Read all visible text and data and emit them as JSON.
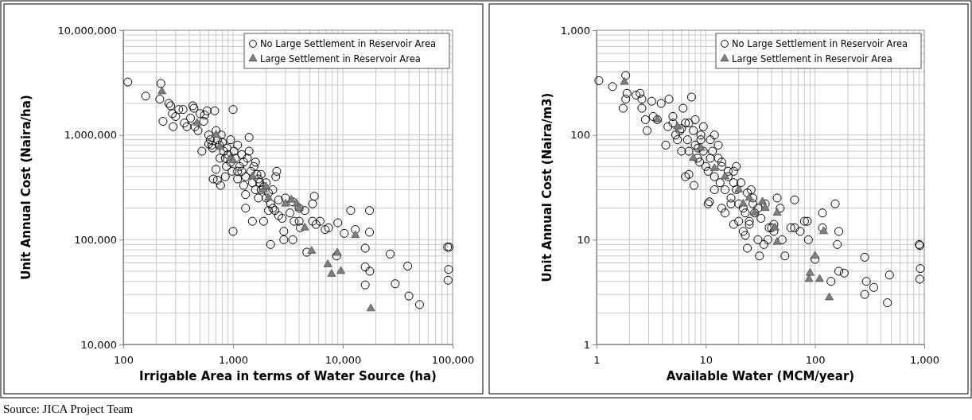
{
  "chart_data": [
    {
      "type": "scatter",
      "xlabel": "Irrigable Area in terms of Water Source (ha)",
      "ylabel": "Unit Annual Cost (Naira/ha)",
      "log": "xy",
      "grid": true,
      "legend": "top right",
      "xlim": [
        100,
        100000
      ],
      "xticks": [
        {
          "value": 100,
          "label": "100"
        },
        {
          "value": 1000,
          "label": "1,000"
        },
        {
          "value": 10000,
          "label": "10,000"
        },
        {
          "value": 100000,
          "label": "100,000"
        }
      ],
      "ylim": [
        10000,
        10000000
      ],
      "yticks": [
        {
          "value": 10000,
          "label": "10,000"
        },
        {
          "value": 100000,
          "label": "100,000"
        },
        {
          "value": 1000000,
          "label": "1,000,000"
        },
        {
          "value": 10000000,
          "label": "10,000,000"
        }
      ],
      "annotations": [
        "Source: JICA Project Team"
      ],
      "series": [
        {
          "name": "No Large Settlement in Reservoir Area",
          "color": "#000000",
          "marker": "circle",
          "x": [
            110,
            160,
            220,
            215,
            230,
            260,
            270,
            280,
            285,
            300,
            320,
            350,
            360,
            380,
            430,
            440,
            410,
            450,
            480,
            500,
            520,
            540,
            550,
            580,
            600,
            620,
            640,
            650,
            680,
            700,
            720,
            750,
            760,
            780,
            800,
            820,
            850,
            870,
            900,
            950,
            980,
            1000,
            1020,
            1050,
            1100,
            1150,
            1200,
            1250,
            1300,
            1350,
            1400,
            1450,
            1500,
            1550,
            1600,
            1650,
            1700,
            1750,
            1800,
            1900,
            2000,
            2100,
            2200,
            2300,
            2400,
            2500,
            2450,
            2600,
            2800,
            2900,
            660,
            700,
            720,
            770,
            850,
            1000,
            1300,
            1300,
            1500,
            1900,
            2100,
            2200,
            3000,
            2900,
            3300,
            3500,
            3600,
            3500,
            4000,
            4000,
            4100,
            4500,
            4700,
            5300,
            5500,
            5300,
            5700,
            6200,
            6900,
            7400,
            8800,
            9000,
            10300,
            11800,
            13000,
            16000,
            17500,
            17500,
            16000,
            17600,
            16000,
            27000,
            30000,
            39000,
            40000,
            50000,
            90000,
            93000,
            92000,
            91000,
            1100,
            1200,
            1400,
            1600,
            1250,
            1800,
            2000,
            1700,
            2300,
            2600,
            950,
            880,
            600,
            1100
          ],
          "values": [
            3200000,
            2350000,
            3100000,
            2200000,
            1350000,
            2000000,
            1900000,
            1600000,
            1200000,
            1500000,
            1750000,
            1750000,
            1300000,
            1200000,
            1900000,
            1800000,
            1450000,
            1200000,
            1100000,
            1600000,
            700000,
            1350000,
            1550000,
            1700000,
            1000000,
            900000,
            800000,
            750000,
            1700000,
            1100000,
            900000,
            800000,
            600000,
            1000000,
            850000,
            700000,
            600000,
            500000,
            650000,
            550000,
            450000,
            1750000,
            700000,
            600000,
            800000,
            500000,
            450000,
            550000,
            400000,
            600000,
            950000,
            450000,
            350000,
            500000,
            300000,
            420000,
            380000,
            350000,
            300000,
            320000,
            250000,
            280000,
            220000,
            200000,
            190000,
            450000,
            400000,
            170000,
            160000,
            120000,
            380000,
            470000,
            370000,
            330000,
            400000,
            120000,
            270000,
            200000,
            150000,
            150000,
            190000,
            90000,
            250000,
            100000,
            180000,
            230000,
            150000,
            100000,
            200000,
            150000,
            130000,
            190000,
            76000,
            220000,
            260000,
            150000,
            140000,
            150000,
            125000,
            130000,
            70000,
            145000,
            115000,
            190000,
            125000,
            83000,
            190000,
            118000,
            55000,
            50000,
            37000,
            73000,
            38000,
            56000,
            29000,
            24000,
            85000,
            85000,
            52000,
            41000,
            380000,
            650000,
            700000,
            550000,
            330000,
            420000,
            350000,
            250000,
            300000,
            240000,
            900000,
            750000,
            820000,
            450000
          ]
        },
        {
          "name": "Large Settlement in Reservoir Area",
          "color": "#7f7f7f",
          "marker": "triangle",
          "x": [
            225,
            470,
            700,
            760,
            950,
            1000,
            1500,
            1900,
            2000,
            2100,
            3000,
            3400,
            3800,
            4000,
            4500,
            5200,
            7300,
            7900,
            8900,
            9600,
            13000,
            18000
          ],
          "values": [
            2600000,
            1300000,
            1000000,
            770000,
            600000,
            570000,
            400000,
            300000,
            320000,
            250000,
            220000,
            240000,
            220000,
            200000,
            130000,
            78000,
            58000,
            47000,
            75000,
            50000,
            110000,
            22000
          ]
        }
      ]
    },
    {
      "type": "scatter",
      "xlabel": "Available Water (MCM/year)",
      "ylabel": "Unit Annual Cost (Naira/m3)",
      "log": "xy",
      "grid": true,
      "legend": "top right",
      "xlim": [
        1,
        1000
      ],
      "xticks": [
        {
          "value": 1,
          "label": "1"
        },
        {
          "value": 10,
          "label": "10"
        },
        {
          "value": 100,
          "label": "100"
        },
        {
          "value": 1000,
          "label": "1,000"
        }
      ],
      "ylim": [
        1,
        1000
      ],
      "yticks": [
        {
          "value": 1,
          "label": "1"
        },
        {
          "value": 10,
          "label": "10"
        },
        {
          "value": 100,
          "label": "100"
        },
        {
          "value": 1000,
          "label": "1,000"
        }
      ],
      "series": [
        {
          "name": "No Large Settlement in Reservoir Area",
          "color": "#000000",
          "marker": "circle",
          "x": [
            1.05,
            1.4,
            1.75,
            1.85,
            1.9,
            1.85,
            2.3,
            2.5,
            2.6,
            2.6,
            2.8,
            2.9,
            3.2,
            3.3,
            3.6,
            3.9,
            4.3,
            4.5,
            4.6,
            5,
            5.3,
            5.5,
            5.8,
            6,
            6.2,
            6.5,
            6.8,
            7,
            7.4,
            7.7,
            8,
            8.4,
            8.8,
            9,
            9.5,
            10,
            10.5,
            11,
            11.5,
            12,
            13,
            13.5,
            14,
            15,
            16,
            17,
            18,
            19,
            20,
            21,
            22,
            23,
            24,
            25,
            27,
            28,
            30,
            32,
            35,
            38,
            42,
            45,
            48,
            6.5,
            7,
            7.8,
            10.5,
            10.8,
            12,
            14,
            15,
            17,
            18,
            20,
            22,
            23,
            24,
            25,
            30,
            34,
            37,
            31,
            40,
            42,
            50,
            53,
            60,
            65,
            65,
            73,
            80,
            85,
            87,
            100,
            117,
            117,
            153,
            160,
            165,
            140,
            165,
            185,
            285,
            295,
            285,
            345,
            480,
            460,
            900,
            910,
            920,
            910,
            8,
            9,
            9.5,
            11,
            12,
            13,
            14,
            16,
            18,
            19,
            5,
            6,
            7,
            8.5,
            27,
            26
          ],
          "values": [
            330,
            290,
            180,
            370,
            250,
            220,
            240,
            250,
            220,
            180,
            140,
            110,
            210,
            150,
            140,
            200,
            80,
            120,
            220,
            130,
            100,
            90,
            110,
            70,
            180,
            130,
            90,
            70,
            230,
            110,
            80,
            60,
            55,
            90,
            70,
            50,
            45,
            60,
            70,
            40,
            80,
            35,
            50,
            30,
            40,
            25,
            45,
            30,
            22,
            35,
            20,
            18,
            28,
            15,
            22,
            18,
            20,
            16,
            22,
            13,
            14,
            25,
            20,
            40,
            42,
            33,
            22,
            23,
            30,
            20,
            18,
            22,
            14,
            15,
            12,
            11,
            8.3,
            14,
            10,
            9,
            10,
            7,
            13,
            12,
            10,
            7,
            13,
            13,
            24,
            12,
            15,
            15,
            10,
            6.5,
            18,
            13,
            22,
            9,
            12,
            4,
            5,
            4.8,
            6.8,
            4,
            3,
            3.5,
            4.6,
            2.5,
            9,
            8.8,
            5.3,
            4.2,
            140,
            100,
            120,
            90,
            100,
            60,
            55,
            45,
            35,
            50,
            150,
            115,
            130,
            75,
            25,
            30
          ]
        },
        {
          "name": "Large Settlement in Reservoir Area",
          "color": "#7f7f7f",
          "marker": "triangle",
          "x": [
            1.8,
            3.6,
            5.5,
            7.7,
            9,
            12,
            15,
            20,
            25,
            22,
            28,
            35,
            33,
            45,
            43,
            45,
            88,
            90,
            100,
            110,
            120,
            135
          ],
          "values": [
            320,
            140,
            120,
            60,
            75,
            48,
            40,
            30,
            25,
            22,
            18,
            20,
            23,
            18,
            13,
            9.5,
            4.2,
            4.8,
            7,
            4.2,
            12,
            2.8
          ]
        }
      ]
    }
  ]
}
